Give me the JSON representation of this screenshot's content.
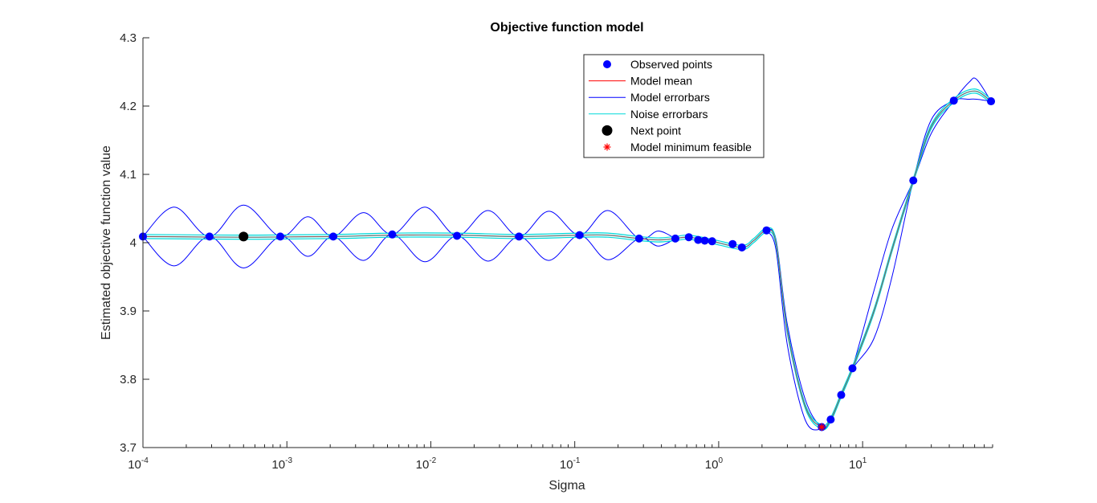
{
  "chart_data": {
    "type": "line",
    "title": "Objective function model",
    "xlabel": "Sigma",
    "ylabel": "Estimated objective function value",
    "xscale": "log",
    "xlim": [
      0.0001,
      80
    ],
    "ylim": [
      3.7,
      4.3
    ],
    "yticks": [
      "3.7",
      "3.8",
      "3.9",
      "4",
      "4.1",
      "4.2",
      "4.3"
    ],
    "xticks": [
      {
        "base": "10",
        "exp": "-4",
        "value": 0.0001
      },
      {
        "base": "10",
        "exp": "-3",
        "value": 0.001
      },
      {
        "base": "10",
        "exp": "-2",
        "value": 0.01
      },
      {
        "base": "10",
        "exp": "-1",
        "value": 0.1
      },
      {
        "base": "10",
        "exp": "0",
        "value": 1
      },
      {
        "base": "10",
        "exp": "1",
        "value": 10
      }
    ],
    "grid": false,
    "legend_position": "top-right (inside)",
    "legend": [
      {
        "label": "Observed points",
        "marker": "filled-circle",
        "color": "#0000ff"
      },
      {
        "label": "Model mean",
        "marker": "line",
        "color": "#ff0000"
      },
      {
        "label": "Model errorbars",
        "marker": "line",
        "color": "#0000ff"
      },
      {
        "label": "Noise errorbars",
        "marker": "line",
        "color": "#00d9d9"
      },
      {
        "label": "Next point",
        "marker": "filled-circle",
        "color": "#000000"
      },
      {
        "label": "Model minimum feasible",
        "marker": "asterisk",
        "color": "#ff0000"
      }
    ],
    "observed_points": {
      "x": [
        0.0001,
        0.00029,
        0.0009,
        0.0021,
        0.0054,
        0.0152,
        0.041,
        0.108,
        0.28,
        0.5,
        0.62,
        0.72,
        0.8,
        0.9,
        1.25,
        1.45,
        2.15,
        5.2,
        6.0,
        7.1,
        8.5,
        22.5,
        43,
        78
      ],
      "y": [
        4.009,
        4.009,
        4.009,
        4.009,
        4.012,
        4.01,
        4.009,
        4.011,
        4.006,
        4.006,
        4.008,
        4.004,
        4.003,
        4.002,
        3.998,
        3.993,
        4.018,
        3.73,
        3.741,
        3.777,
        3.816,
        4.091,
        4.208,
        4.207
      ]
    },
    "model_mean": {
      "x": [
        0.0001,
        0.0005,
        0.0021,
        0.0054,
        0.0152,
        0.041,
        0.108,
        0.17,
        0.28,
        0.38,
        0.5,
        0.62,
        0.9,
        1.45,
        1.75,
        2.15,
        2.5,
        3.0,
        4.0,
        5.2,
        6.0,
        7.1,
        8.5,
        12,
        16,
        22.5,
        30,
        43,
        60,
        78
      ],
      "y": [
        4.009,
        4.008,
        4.009,
        4.011,
        4.011,
        4.009,
        4.011,
        4.011,
        4.006,
        4.004,
        4.006,
        4.008,
        4.002,
        3.993,
        4.003,
        4.018,
        4.0,
        3.87,
        3.76,
        3.73,
        3.741,
        3.777,
        3.816,
        3.9,
        3.99,
        4.091,
        4.17,
        4.208,
        4.222,
        4.207
      ]
    },
    "model_errorbars": {
      "x": [
        0.0001,
        0.000165,
        0.00029,
        0.0005,
        0.0009,
        0.0014,
        0.0021,
        0.0034,
        0.0054,
        0.0091,
        0.0152,
        0.025,
        0.041,
        0.066,
        0.108,
        0.17,
        0.28,
        0.38,
        0.5
      ],
      "upper": [
        4.009,
        4.052,
        4.009,
        4.055,
        4.009,
        4.038,
        4.009,
        4.044,
        4.012,
        4.052,
        4.01,
        4.047,
        4.009,
        4.046,
        4.011,
        4.047,
        4.006,
        4.017,
        4.006
      ],
      "lower": [
        4.009,
        3.966,
        4.009,
        3.963,
        4.009,
        3.98,
        4.009,
        3.974,
        4.012,
        3.972,
        4.01,
        3.973,
        4.009,
        3.974,
        4.011,
        3.975,
        4.006,
        3.995,
        4.006
      ],
      "upper_tail": {
        "x": [
          2.15,
          2.5,
          3.0,
          4.0,
          5.2,
          6.0,
          7.1,
          8.5,
          12,
          16,
          22.5,
          30,
          43,
          55,
          62,
          78
        ],
        "y": [
          4.019,
          4.005,
          3.88,
          3.77,
          3.73,
          3.742,
          3.779,
          3.817,
          3.93,
          4.02,
          4.091,
          4.16,
          4.208,
          4.235,
          4.239,
          4.207
        ]
      },
      "lower_tail": {
        "x": [
          2.15,
          2.5,
          3.0,
          4.0,
          5.2,
          6.0,
          7.1,
          8.5,
          12,
          16,
          22.5,
          30,
          43,
          55,
          62,
          78
        ],
        "y": [
          4.017,
          3.99,
          3.85,
          3.74,
          3.727,
          3.739,
          3.775,
          3.815,
          3.86,
          3.95,
          4.091,
          4.18,
          4.208,
          4.21,
          4.21,
          4.207
        ]
      }
    },
    "next_point": {
      "x": 0.0005,
      "y": 4.009
    },
    "model_minimum_feasible": {
      "x": 5.2,
      "y": 3.73
    }
  }
}
